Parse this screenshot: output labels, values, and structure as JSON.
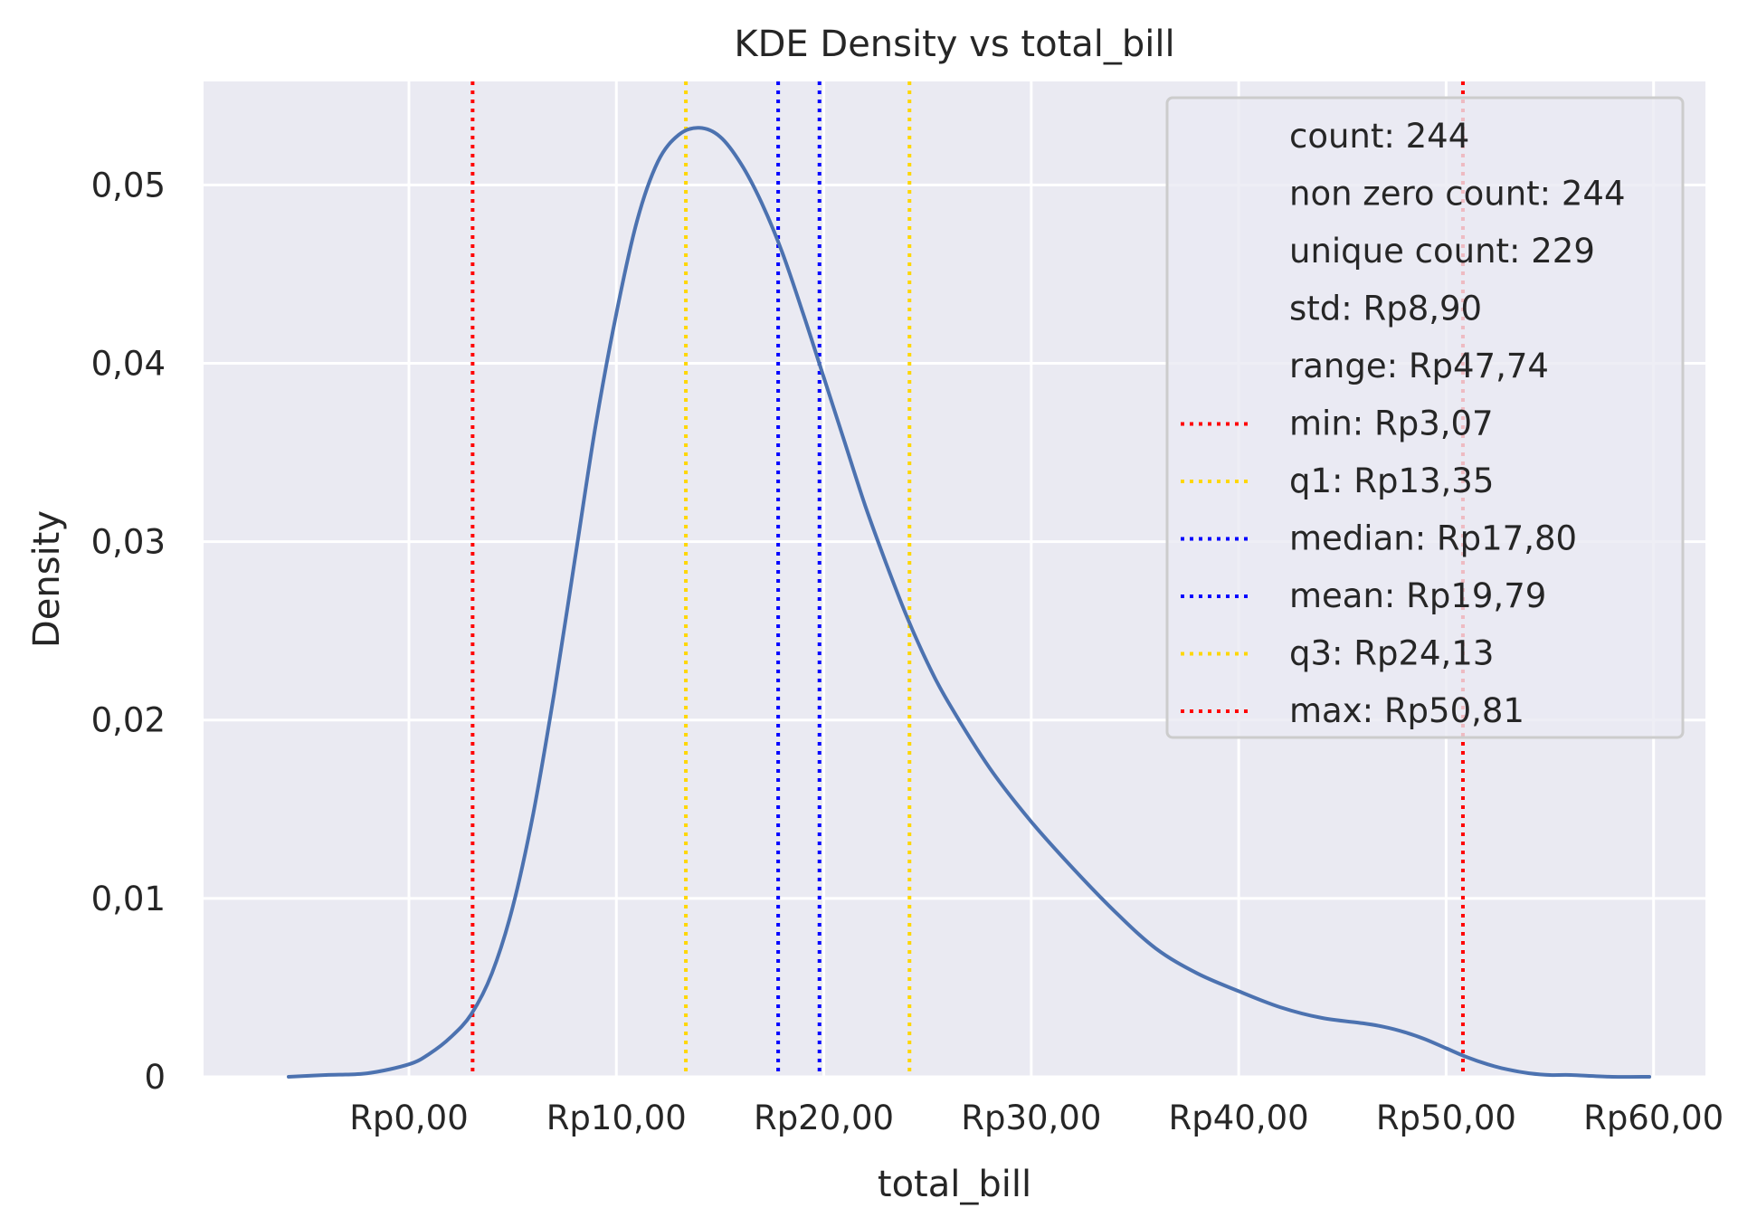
{
  "chart_data": {
    "type": "line",
    "title": "KDE Density vs total_bill",
    "xlabel": "total_bill",
    "ylabel": "Density",
    "xlim": [
      -9.9,
      62.5
    ],
    "ylim": [
      0,
      0.0558
    ],
    "grid": true,
    "x_ticks": [
      0,
      10,
      20,
      30,
      40,
      50,
      60
    ],
    "x_tick_labels": [
      "Rp0,00",
      "Rp10,00",
      "Rp20,00",
      "Rp30,00",
      "Rp40,00",
      "Rp50,00",
      "Rp60,00"
    ],
    "y_ticks": [
      0,
      0.01,
      0.02,
      0.03,
      0.04,
      0.05
    ],
    "y_tick_labels": [
      "0",
      "0,01",
      "0,02",
      "0,03",
      "0,04",
      "0,05"
    ],
    "series": [
      {
        "color": "#4c72b0",
        "x": [
          -5.8,
          -4,
          -2,
          0,
          1,
          2,
          3,
          4,
          5,
          6,
          7,
          8,
          9,
          10,
          11,
          12,
          13,
          14,
          15,
          16,
          17,
          18,
          19,
          20,
          21,
          22,
          23,
          24,
          25,
          26,
          28,
          30,
          32,
          34,
          36,
          38,
          40,
          42,
          44,
          46,
          47,
          48,
          49,
          50,
          51,
          52,
          53,
          54,
          55,
          56,
          58,
          59.8
        ],
        "y": [
          0.0,
          0.0001,
          0.0002,
          0.0007,
          0.0013,
          0.0022,
          0.0035,
          0.0058,
          0.0095,
          0.0148,
          0.0215,
          0.029,
          0.0365,
          0.0428,
          0.048,
          0.0513,
          0.0528,
          0.0532,
          0.0527,
          0.0512,
          0.049,
          0.0462,
          0.0428,
          0.0392,
          0.0356,
          0.032,
          0.0288,
          0.0258,
          0.0232,
          0.021,
          0.0173,
          0.0143,
          0.0117,
          0.0093,
          0.0072,
          0.0058,
          0.0048,
          0.0039,
          0.0033,
          0.003,
          0.0028,
          0.0025,
          0.0021,
          0.0016,
          0.0011,
          0.0007,
          0.0004,
          0.0002,
          0.0001,
          0.0001,
          0.0,
          0.0
        ]
      }
    ],
    "vlines": [
      {
        "label": "min: Rp3,07",
        "x": 3.07,
        "color": "#ff0000"
      },
      {
        "label": "q1: Rp13,35",
        "x": 13.35,
        "color": "#ffd700"
      },
      {
        "label": "median: Rp17,80",
        "x": 17.8,
        "color": "#0000ff"
      },
      {
        "label": "mean: Rp19,79",
        "x": 19.79,
        "color": "#0000ff"
      },
      {
        "label": "q3: Rp24,13",
        "x": 24.13,
        "color": "#ffd700"
      },
      {
        "label": "max: Rp50,81",
        "x": 50.81,
        "color": "#ff0000"
      }
    ],
    "legend": {
      "placement": "top-right",
      "text_entries": [
        "count: 244",
        "non zero count: 244",
        "unique count: 229",
        "std: Rp8,90",
        "range: Rp47,74"
      ]
    }
  }
}
